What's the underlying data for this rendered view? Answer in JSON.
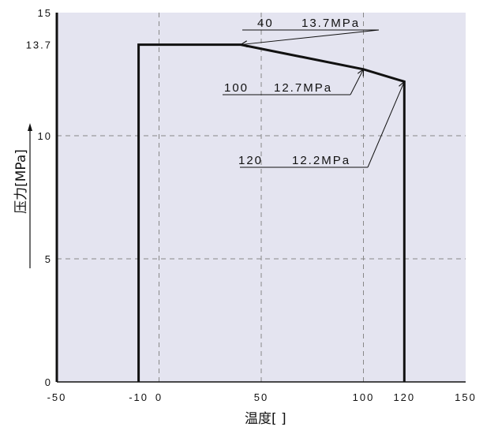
{
  "chart_data": {
    "type": "line",
    "title": "",
    "xlabel": "温度[ ]",
    "ylabel": "压力[MPa]",
    "xlim": [
      -50,
      150
    ],
    "ylim": [
      0,
      15
    ],
    "x_ticks": [
      {
        "value": -50,
        "label": "-50"
      },
      {
        "value": -10,
        "label": "-10"
      },
      {
        "value": 0,
        "label": "0"
      },
      {
        "value": 50,
        "label": "50"
      },
      {
        "value": 100,
        "label": "100"
      },
      {
        "value": 120,
        "label": "120"
      },
      {
        "value": 150,
        "label": "150"
      }
    ],
    "y_ticks": [
      {
        "value": 0,
        "label": "0"
      },
      {
        "value": 5,
        "label": "5"
      },
      {
        "value": 10,
        "label": "10"
      },
      {
        "value": 13.7,
        "label": "13.7"
      },
      {
        "value": 15,
        "label": "15"
      }
    ],
    "grid": true,
    "grid_x": [
      0,
      50,
      100
    ],
    "grid_y": [
      5,
      10
    ],
    "series": [
      {
        "points": [
          [
            -10,
            0
          ],
          [
            -10,
            13.7
          ],
          [
            40,
            13.7
          ],
          [
            100,
            12.7
          ],
          [
            120,
            12.2
          ],
          [
            120,
            0
          ]
        ]
      }
    ],
    "annotations": [
      {
        "label_x": "40",
        "label_value": "13.7MPa",
        "x": 40,
        "y": 13.7
      },
      {
        "label_x": "100",
        "label_value": "12.7MPa",
        "x": 100,
        "y": 12.7
      },
      {
        "label_x": "120",
        "label_value": "12.2MPa",
        "x": 120,
        "y": 12.2
      }
    ],
    "colors": {
      "plot_background": "#e4e4f0",
      "line": "#111111",
      "grid": "#888888"
    }
  }
}
